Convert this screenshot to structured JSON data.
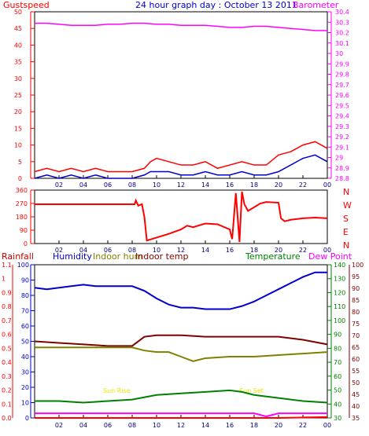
{
  "header": {
    "left_label": "Gustspeed",
    "title": "24 hour graph day : October 13 2011",
    "right_label": "Barometer"
  },
  "colors": {
    "red": "#ff0000",
    "magenta": "#ff00ff",
    "blue": "#0000cc",
    "olive": "#808000",
    "maroon": "#800000",
    "green": "#008000",
    "navy": "#000080",
    "yellow": "#ffff00",
    "panel_bg": "#ffffff",
    "grid": "#c0c0c0"
  },
  "chart_data": [
    {
      "type": "line",
      "name": "gust-barometer",
      "x_ticks": [
        "02",
        "04",
        "06",
        "08",
        "10",
        "12",
        "14",
        "16",
        "18",
        "20",
        "22",
        "00"
      ],
      "y_left": {
        "label": "Gustspeed",
        "ticks": [
          0,
          5,
          10,
          15,
          20,
          25,
          30,
          35,
          40,
          45,
          50
        ],
        "ylim": [
          0,
          50
        ]
      },
      "y_right": {
        "label": "Barometer",
        "ticks": [
          "28.8",
          "28.9",
          "29",
          "29.1",
          "29.2",
          "29.3",
          "29.4",
          "29.5",
          "29.6",
          "29.7",
          "29.8",
          "29.9",
          "30",
          "30.1",
          "30.2",
          "30.3",
          "30.4"
        ],
        "ylim": [
          28.8,
          30.4
        ]
      },
      "series": [
        {
          "name": "Barometer",
          "color": "magenta",
          "axis": "right",
          "x": [
            0,
            1,
            2,
            3,
            4,
            5,
            6,
            7,
            8,
            9,
            10,
            11,
            12,
            13,
            14,
            15,
            16,
            17,
            18,
            19,
            20,
            21,
            22,
            23,
            24
          ],
          "values": [
            30.29,
            30.29,
            30.28,
            30.27,
            30.27,
            30.27,
            30.28,
            30.28,
            30.29,
            30.29,
            30.28,
            30.28,
            30.27,
            30.27,
            30.27,
            30.26,
            30.25,
            30.25,
            30.26,
            30.26,
            30.25,
            30.24,
            30.23,
            30.22,
            30.22
          ]
        },
        {
          "name": "Gustspeed",
          "color": "red",
          "axis": "left",
          "x": [
            0,
            1,
            2,
            3,
            4,
            5,
            6,
            7,
            8,
            9,
            9.5,
            10,
            11,
            12,
            13,
            14,
            15,
            16,
            17,
            18,
            19,
            20,
            21,
            22,
            23,
            24
          ],
          "values": [
            2,
            3,
            2,
            3,
            2,
            3,
            2,
            2,
            2,
            3,
            5,
            6,
            5,
            4,
            4,
            5,
            3,
            4,
            5,
            4,
            4,
            7,
            8,
            10,
            11,
            9
          ]
        },
        {
          "name": "Windspeed",
          "color": "blue",
          "axis": "left",
          "x": [
            0,
            1,
            2,
            3,
            4,
            5,
            6,
            7,
            8,
            9,
            9.5,
            10,
            11,
            12,
            13,
            14,
            15,
            16,
            17,
            18,
            19,
            20,
            21,
            22,
            23,
            24
          ],
          "values": [
            0,
            1,
            0,
            1,
            0,
            1,
            0,
            0,
            0,
            1,
            2,
            2,
            2,
            1,
            1,
            2,
            1,
            1,
            2,
            1,
            1,
            2,
            4,
            6,
            7,
            5
          ]
        }
      ]
    },
    {
      "type": "line",
      "name": "wind-direction",
      "x_ticks": [
        "02",
        "04",
        "06",
        "08",
        "10",
        "12",
        "14",
        "16",
        "18",
        "20",
        "22",
        "00"
      ],
      "y_left": {
        "ticks": [
          0,
          90,
          180,
          270,
          360
        ],
        "ylim": [
          0,
          360
        ]
      },
      "y_right": {
        "ticks": [
          "N",
          "W",
          "S",
          "E",
          "N"
        ]
      },
      "series": [
        {
          "name": "Direction",
          "color": "red",
          "x": [
            0,
            8.2,
            8.3,
            8.5,
            8.8,
            9,
            9.2,
            10,
            11,
            12,
            12.5,
            13,
            14,
            15,
            16,
            16.2,
            16.5,
            16.8,
            17,
            17.2,
            17.5,
            18.5,
            19,
            20,
            20.2,
            20.5,
            21,
            22,
            23,
            24
          ],
          "values": [
            265,
            265,
            290,
            255,
            265,
            180,
            20,
            40,
            65,
            95,
            120,
            110,
            135,
            130,
            95,
            30,
            340,
            10,
            350,
            265,
            220,
            270,
            280,
            275,
            170,
            150,
            160,
            170,
            175,
            170
          ]
        }
      ]
    },
    {
      "type": "line",
      "name": "humidity-temperature",
      "x_ticks": [
        "02",
        "04",
        "06",
        "08",
        "10",
        "12",
        "14",
        "16",
        "18",
        "20",
        "22",
        "00"
      ],
      "y_rain": {
        "label": "Rainfall",
        "ticks": [
          "0.0",
          "0.1",
          "0.2",
          "0.3",
          "0.4",
          "0.5",
          "0.6",
          "0.7",
          "0.8",
          "0.9",
          "1",
          "1.1"
        ]
      },
      "y_humidity": {
        "label": "Humidity",
        "ticks": [
          0,
          10,
          20,
          30,
          40,
          50,
          60,
          70,
          80,
          90,
          100
        ],
        "ylim": [
          0,
          100
        ]
      },
      "y_temp": {
        "label": "Temperature",
        "ticks": [
          30,
          40,
          50,
          60,
          70,
          80,
          90,
          100,
          110,
          120,
          130,
          140
        ],
        "ylim": [
          30,
          140
        ]
      },
      "y_dewpoint": {
        "label": "Dew Point",
        "ticks": [
          35,
          40,
          45,
          50,
          55,
          60,
          65,
          70,
          75,
          80,
          85,
          90,
          95,
          100
        ],
        "ylim": [
          35,
          100
        ]
      },
      "legend": [
        "Rainfall",
        "Humidity",
        "Indoor hum",
        "Indoor temp",
        "Temperature",
        "Dew Point"
      ],
      "annotations": [
        "Sun Rise",
        "Sun Set"
      ],
      "series": [
        {
          "name": "Humidity",
          "color": "blue",
          "axis": "humidity",
          "x": [
            0,
            1,
            2,
            3,
            4,
            5,
            6,
            7,
            8,
            9,
            10,
            11,
            12,
            13,
            14,
            15,
            16,
            17,
            18,
            19,
            20,
            21,
            22,
            23,
            24
          ],
          "values": [
            85,
            84,
            85,
            86,
            87,
            86,
            86,
            86,
            86,
            83,
            78,
            74,
            72,
            72,
            71,
            71,
            71,
            73,
            76,
            80,
            84,
            88,
            92,
            95,
            95
          ]
        },
        {
          "name": "Indoor temp",
          "color": "maroon",
          "axis": "humidity",
          "x": [
            0,
            2,
            4,
            6,
            8,
            9,
            10,
            12,
            14,
            16,
            18,
            20,
            22,
            24
          ],
          "values": [
            50,
            49,
            48,
            47,
            47,
            53,
            54,
            54,
            53,
            53,
            53,
            53,
            51,
            48
          ]
        },
        {
          "name": "Indoor hum",
          "color": "olive",
          "axis": "humidity",
          "x": [
            0,
            2,
            4,
            6,
            8,
            9,
            10,
            11,
            12,
            13,
            14,
            16,
            18,
            20,
            22,
            24
          ],
          "values": [
            46,
            46,
            46,
            46,
            46,
            44,
            43,
            43,
            40,
            37,
            39,
            40,
            40,
            41,
            42,
            43
          ]
        },
        {
          "name": "Temperature",
          "color": "green",
          "axis": "humidity",
          "x": [
            0,
            2,
            4,
            6,
            8,
            10,
            12,
            14,
            16,
            17,
            18,
            20,
            22,
            24
          ],
          "values": [
            11,
            11,
            10,
            11,
            12,
            15,
            16,
            17,
            18,
            17,
            15,
            13,
            11,
            10
          ]
        },
        {
          "name": "Dew Point",
          "color": "magenta",
          "axis": "humidity",
          "x": [
            0,
            4,
            8,
            12,
            16,
            18,
            19,
            20,
            22,
            24
          ],
          "values": [
            3,
            3,
            3,
            3,
            3,
            3,
            1,
            3,
            3,
            3
          ]
        },
        {
          "name": "Rainfall",
          "color": "red",
          "axis": "humidity",
          "x": [
            0,
            16,
            20,
            22,
            24
          ],
          "values": [
            0,
            0,
            0,
            0.3,
            0.6
          ]
        }
      ]
    }
  ]
}
